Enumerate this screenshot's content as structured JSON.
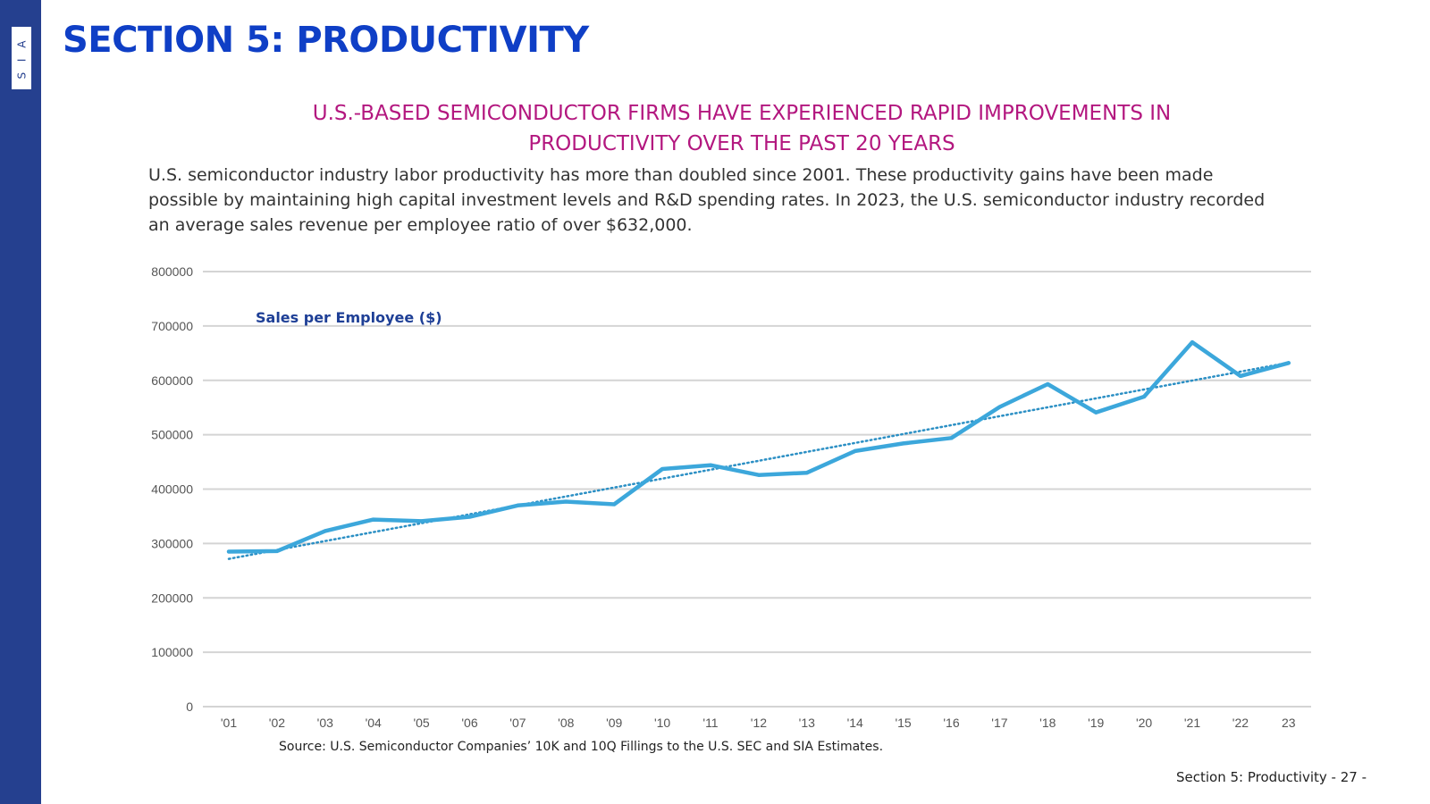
{
  "slide": {
    "logo_text": "S I A",
    "section_title": "SECTION 5: PRODUCTIVITY",
    "subtitle_line1": "U.S.-BASED SEMICONDUCTOR FIRMS HAVE EXPERIENCED RAPID IMPROVEMENTS IN",
    "subtitle_line2": "PRODUCTIVITY OVER THE PAST 20 YEARS",
    "body_text": "U.S. semiconductor industry labor productivity has more than doubled since 2001. These productivity gains have been made possible by maintaining high capital investment levels and R&D spending rates. In 2023, the U.S. semiconductor industry recorded an average sales revenue per employee ratio of over $632,000.",
    "source": "Source: U.S. Semiconductor Companies’ 10K and 10Q Fillings to the U.S. SEC and SIA Estimates.",
    "footer": "Section 5: Productivity - 27 -"
  },
  "colors": {
    "sidebar": "#25408f",
    "title": "#0f3fc6",
    "subtitle": "#b3177f",
    "series": "#3ca7db",
    "trendline": "#2b8fc4",
    "label": "#1e3f96"
  },
  "chart_data": {
    "type": "line",
    "title": "",
    "series_label": "Sales per Employee ($)",
    "categories": [
      "'01",
      "'02",
      "'03",
      "'04",
      "'05",
      "'06",
      "'07",
      "'08",
      "'09",
      "'10",
      "'11",
      "'12",
      "'13",
      "'14",
      "'15",
      "'16",
      "'17",
      "'18",
      "'19",
      "'20",
      "'21",
      "'22",
      "23"
    ],
    "series": [
      {
        "name": "Sales per Employee ($)",
        "values": [
          285000,
          286000,
          323000,
          344000,
          341000,
          349000,
          370000,
          377000,
          372000,
          437000,
          444000,
          426000,
          430000,
          470000,
          484000,
          494000,
          551000,
          593000,
          541000,
          570000,
          670000,
          608000,
          632000
        ]
      }
    ],
    "trendline": {
      "type": "linear",
      "dotted": true
    },
    "ylim": [
      0,
      800000
    ],
    "yticks": [
      "0",
      "100000",
      "200000",
      "300000",
      "400000",
      "500000",
      "600000",
      "700000",
      "800000"
    ],
    "xlabel": "",
    "ylabel": "",
    "grid": true
  }
}
